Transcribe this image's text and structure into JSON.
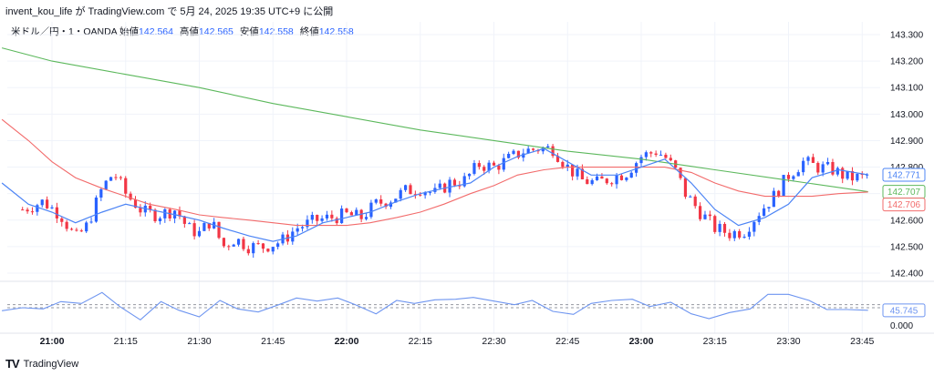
{
  "header": {
    "text": "invent_kou_life が TradingView.com で 5月 24, 2025 19:35 UTC+9 に公開"
  },
  "legend": {
    "symbol": "米ドル／円・1・OANDA",
    "open_label": "始値",
    "open": "142.564",
    "high_label": "高値",
    "high": "142.565",
    "low_label": "安値",
    "low": "142.558",
    "close_label": "終値",
    "close": "142.558"
  },
  "footer": {
    "logo": "TV",
    "brand": "TradingView"
  },
  "colors": {
    "up": "#2962ff",
    "down": "#f23645",
    "ma_fast": "#4c84f5",
    "ma_mid": "#f26b6b",
    "ma_slow": "#5cb85c",
    "osc": "#6e95f0",
    "grid": "#f0f3fa"
  },
  "chart_data": [
    {
      "type": "candlestick",
      "symbol": "米ドル／円",
      "interval": "1",
      "source": "OANDA",
      "y_ticks": [
        "143.300",
        "143.200",
        "143.100",
        "143.000",
        "142.900",
        "142.800",
        "142.700",
        "142.600",
        "142.500",
        "142.400"
      ],
      "ylim": [
        142.4,
        143.3
      ],
      "x_ticks": [
        "21:00",
        "21:15",
        "21:30",
        "21:45",
        "22:00",
        "22:15",
        "22:30",
        "22:45",
        "23:00",
        "23:15",
        "23:30",
        "23:45"
      ],
      "x_major": [
        "21:00",
        "22:00",
        "23:00"
      ],
      "price_tags": [
        {
          "value": "142.771",
          "series": "ma_fast"
        },
        {
          "value": "142.707",
          "series": "ma_slow"
        },
        {
          "value": "142.706",
          "series": "ma_mid"
        }
      ],
      "close_path": [
        [
          20.9,
          142.64
        ],
        [
          20.97,
          142.67
        ],
        [
          21.03,
          142.62
        ],
        [
          21.08,
          142.53
        ],
        [
          21.12,
          142.58
        ],
        [
          21.17,
          142.72
        ],
        [
          21.21,
          142.78
        ],
        [
          21.25,
          142.7
        ],
        [
          21.31,
          142.63
        ],
        [
          21.36,
          142.62
        ],
        [
          21.42,
          142.64
        ],
        [
          21.46,
          142.57
        ],
        [
          21.5,
          142.55
        ],
        [
          21.54,
          142.6
        ],
        [
          21.58,
          142.5
        ],
        [
          21.62,
          142.53
        ],
        [
          21.67,
          142.5
        ],
        [
          21.72,
          142.5
        ],
        [
          21.78,
          142.52
        ],
        [
          21.83,
          142.57
        ],
        [
          21.9,
          142.6
        ],
        [
          21.95,
          142.61
        ],
        [
          22.0,
          142.62
        ],
        [
          22.05,
          142.61
        ],
        [
          22.1,
          142.66
        ],
        [
          22.15,
          142.68
        ],
        [
          22.2,
          142.71
        ],
        [
          22.25,
          142.72
        ],
        [
          22.3,
          142.7
        ],
        [
          22.35,
          142.74
        ],
        [
          22.4,
          142.75
        ],
        [
          22.45,
          142.81
        ],
        [
          22.5,
          142.8
        ],
        [
          22.55,
          142.83
        ],
        [
          22.6,
          142.86
        ],
        [
          22.65,
          142.87
        ],
        [
          22.7,
          142.87
        ],
        [
          22.75,
          142.8
        ],
        [
          22.8,
          142.75
        ],
        [
          22.85,
          142.74
        ],
        [
          22.9,
          142.76
        ],
        [
          22.95,
          142.78
        ],
        [
          23.0,
          142.84
        ],
        [
          23.05,
          142.86
        ],
        [
          23.08,
          142.84
        ],
        [
          23.12,
          142.78
        ],
        [
          23.15,
          142.7
        ],
        [
          23.2,
          142.63
        ],
        [
          23.25,
          142.57
        ],
        [
          23.3,
          142.55
        ],
        [
          23.35,
          142.56
        ],
        [
          23.4,
          142.63
        ],
        [
          23.45,
          142.69
        ],
        [
          23.5,
          142.77
        ],
        [
          23.55,
          142.82
        ],
        [
          23.6,
          142.8
        ],
        [
          23.65,
          142.79
        ],
        [
          23.7,
          142.76
        ],
        [
          23.75,
          142.76
        ],
        [
          23.77,
          142.77
        ]
      ],
      "ma_fast_path": [
        [
          20.83,
          142.74
        ],
        [
          20.92,
          142.66
        ],
        [
          21.0,
          142.63
        ],
        [
          21.08,
          142.59
        ],
        [
          21.17,
          142.63
        ],
        [
          21.25,
          142.66
        ],
        [
          21.33,
          142.64
        ],
        [
          21.42,
          142.62
        ],
        [
          21.5,
          142.6
        ],
        [
          21.58,
          142.57
        ],
        [
          21.67,
          142.54
        ],
        [
          21.75,
          142.52
        ],
        [
          21.83,
          142.54
        ],
        [
          21.92,
          142.59
        ],
        [
          22.0,
          142.61
        ],
        [
          22.08,
          142.63
        ],
        [
          22.17,
          142.67
        ],
        [
          22.25,
          142.7
        ],
        [
          22.33,
          142.72
        ],
        [
          22.42,
          142.74
        ],
        [
          22.5,
          142.8
        ],
        [
          22.58,
          142.84
        ],
        [
          22.67,
          142.87
        ],
        [
          22.75,
          142.82
        ],
        [
          22.83,
          142.77
        ],
        [
          22.92,
          142.77
        ],
        [
          23.0,
          142.8
        ],
        [
          23.08,
          142.83
        ],
        [
          23.17,
          142.74
        ],
        [
          23.25,
          142.64
        ],
        [
          23.33,
          142.58
        ],
        [
          23.42,
          142.61
        ],
        [
          23.5,
          142.66
        ],
        [
          23.58,
          142.76
        ],
        [
          23.67,
          142.79
        ],
        [
          23.77,
          142.771
        ]
      ],
      "ma_mid_path": [
        [
          20.83,
          142.98
        ],
        [
          20.92,
          142.9
        ],
        [
          21.0,
          142.82
        ],
        [
          21.08,
          142.76
        ],
        [
          21.17,
          142.72
        ],
        [
          21.25,
          142.69
        ],
        [
          21.33,
          142.66
        ],
        [
          21.42,
          142.64
        ],
        [
          21.5,
          142.62
        ],
        [
          21.58,
          142.61
        ],
        [
          21.67,
          142.6
        ],
        [
          21.75,
          142.59
        ],
        [
          21.83,
          142.58
        ],
        [
          21.92,
          142.58
        ],
        [
          22.0,
          142.58
        ],
        [
          22.08,
          142.59
        ],
        [
          22.17,
          142.61
        ],
        [
          22.25,
          142.63
        ],
        [
          22.33,
          142.66
        ],
        [
          22.42,
          142.7
        ],
        [
          22.5,
          142.73
        ],
        [
          22.58,
          142.77
        ],
        [
          22.67,
          142.79
        ],
        [
          22.75,
          142.8
        ],
        [
          22.83,
          142.8
        ],
        [
          22.92,
          142.8
        ],
        [
          23.0,
          142.8
        ],
        [
          23.08,
          142.8
        ],
        [
          23.17,
          142.78
        ],
        [
          23.25,
          142.74
        ],
        [
          23.33,
          142.71
        ],
        [
          23.42,
          142.69
        ],
        [
          23.5,
          142.69
        ],
        [
          23.58,
          142.69
        ],
        [
          23.67,
          142.7
        ],
        [
          23.77,
          142.706
        ]
      ],
      "ma_slow_path": [
        [
          20.83,
          143.25
        ],
        [
          21.0,
          143.2
        ],
        [
          21.25,
          143.15
        ],
        [
          21.5,
          143.1
        ],
        [
          21.75,
          143.04
        ],
        [
          22.0,
          142.99
        ],
        [
          22.25,
          142.94
        ],
        [
          22.5,
          142.9
        ],
        [
          22.75,
          142.86
        ],
        [
          23.0,
          142.83
        ],
        [
          23.25,
          142.79
        ],
        [
          23.5,
          142.75
        ],
        [
          23.77,
          142.707
        ]
      ]
    },
    {
      "type": "line",
      "panel": "oscillator",
      "y_ticks": [
        "0.000"
      ],
      "last_value": "45.745",
      "guide_levels": [
        50,
        55
      ],
      "x": [
        20.83,
        20.9,
        20.97,
        21.03,
        21.1,
        21.17,
        21.23,
        21.3,
        21.37,
        21.43,
        21.5,
        21.57,
        21.63,
        21.7,
        21.77,
        21.83,
        21.9,
        21.97,
        22.03,
        22.1,
        22.17,
        22.23,
        22.3,
        22.37,
        22.43,
        22.5,
        22.57,
        22.63,
        22.7,
        22.77,
        22.83,
        22.9,
        22.97,
        23.03,
        23.1,
        23.17,
        23.23,
        23.3,
        23.37,
        23.43,
        23.5,
        23.57,
        23.63,
        23.7,
        23.77
      ],
      "values": [
        45,
        50,
        48,
        60,
        57,
        75,
        52,
        30,
        60,
        46,
        35,
        62,
        48,
        43,
        55,
        66,
        61,
        66,
        55,
        40,
        62,
        57,
        63,
        64,
        67,
        61,
        55,
        62,
        44,
        39,
        57,
        62,
        64,
        52,
        59,
        40,
        32,
        42,
        48,
        72,
        72,
        62,
        47,
        47,
        45.745
      ]
    }
  ]
}
